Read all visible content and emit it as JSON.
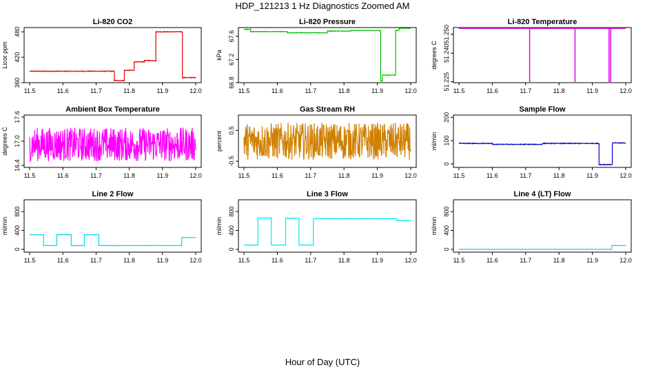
{
  "figure": {
    "title": "HDP_121213  1 Hz Diagnostics Zoomed AM",
    "xlabel": "Hour of Day (UTC)"
  },
  "chart_data": [
    {
      "type": "line",
      "title": "Li-820 CO2",
      "ylabel": "Licor ppm",
      "color": "#e00000",
      "xlim": [
        11.5,
        12.0
      ],
      "ylim": [
        360,
        490
      ],
      "xticks": [
        "11.5",
        "11.6",
        "11.7",
        "11.8",
        "11.9",
        "12.0"
      ],
      "yticks": [
        360,
        420,
        480
      ],
      "ytick_labels": [
        "360",
        "420",
        "480"
      ],
      "segments": [
        [
          11.5,
          11.755,
          387
        ],
        [
          11.755,
          11.785,
          365
        ],
        [
          11.785,
          11.815,
          389
        ],
        [
          11.815,
          11.845,
          409
        ],
        [
          11.845,
          11.88,
          412
        ],
        [
          11.88,
          11.96,
          480
        ],
        [
          11.96,
          12.0,
          372
        ]
      ],
      "noise": 0.8
    },
    {
      "type": "line",
      "title": "Li-820 Pressure",
      "ylabel": "kPa",
      "color": "#00c000",
      "xlim": [
        11.5,
        12.0
      ],
      "ylim": [
        66.8,
        67.75
      ],
      "xticks": [
        "11.5",
        "11.6",
        "11.7",
        "11.8",
        "11.9",
        "12.0"
      ],
      "yticks": [
        66.8,
        67.2,
        67.6
      ],
      "ytick_labels": [
        "66.8",
        "67.2",
        "67.6"
      ],
      "segments": [
        [
          11.5,
          11.52,
          67.72
        ],
        [
          11.52,
          11.63,
          67.68
        ],
        [
          11.63,
          11.75,
          67.66
        ],
        [
          11.75,
          11.82,
          67.69
        ],
        [
          11.82,
          11.91,
          67.7
        ],
        [
          11.91,
          11.915,
          66.83
        ],
        [
          11.915,
          11.955,
          66.93
        ],
        [
          11.955,
          11.965,
          67.7
        ],
        [
          11.965,
          12.0,
          67.74
        ]
      ],
      "noise": 0.005
    },
    {
      "type": "line",
      "title": "Li-820 Temperature",
      "ylabel": "degrees C",
      "color": "#e000e0",
      "xlim": [
        11.5,
        12.0
      ],
      "ylim": [
        51.2245,
        51.2535
      ],
      "xticks": [
        "11.5",
        "11.6",
        "11.7",
        "11.8",
        "11.9",
        "12.0"
      ],
      "yticks": [
        51.225,
        51.24,
        51.25
      ],
      "ytick_labels": [
        "51.225",
        "51.240",
        "51.250"
      ],
      "segments": [
        [
          11.5,
          12.0,
          51.253
        ]
      ],
      "spikes": [
        [
          11.712,
          51.2245
        ],
        [
          11.848,
          51.2245
        ],
        [
          11.95,
          51.2245
        ],
        [
          11.955,
          51.2245
        ]
      ],
      "noise": 0.0
    },
    {
      "type": "line",
      "title": "Ambient Box Temperature",
      "ylabel": "degrees C",
      "color": "#ff00ff",
      "xlim": [
        11.5,
        12.0
      ],
      "ylim": [
        16.35,
        17.65
      ],
      "xticks": [
        "11.5",
        "11.6",
        "11.7",
        "11.8",
        "11.9",
        "12.0"
      ],
      "yticks": [
        16.4,
        17.0,
        17.6
      ],
      "ytick_labels": [
        "16.4",
        "17.0",
        "17.6"
      ],
      "segments": [
        [
          11.5,
          12.0,
          16.92
        ]
      ],
      "noise": 0.42
    },
    {
      "type": "line",
      "title": "Gas Stream RH",
      "ylabel": "percent",
      "color": "#d08000",
      "xlim": [
        11.5,
        12.0
      ],
      "ylim": [
        -0.7,
        1.0
      ],
      "xticks": [
        "11.5",
        "11.6",
        "11.7",
        "11.8",
        "11.9",
        "12.0"
      ],
      "yticks": [
        -0.5,
        0.5
      ],
      "ytick_labels": [
        "-0.5",
        "0.5"
      ],
      "segments": [
        [
          11.5,
          12.0,
          0.15
        ]
      ],
      "noise": 0.6
    },
    {
      "type": "line",
      "title": "Sample Flow",
      "ylabel": "ml/min",
      "color": "#0000c0",
      "xlim": [
        11.5,
        12.0
      ],
      "ylim": [
        -15,
        210
      ],
      "xticks": [
        "11.5",
        "11.6",
        "11.7",
        "11.8",
        "11.9",
        "12.0"
      ],
      "yticks": [
        0,
        100,
        200
      ],
      "ytick_labels": [
        "0",
        "100",
        "200"
      ],
      "segments": [
        [
          11.5,
          11.6,
          88
        ],
        [
          11.6,
          11.75,
          84
        ],
        [
          11.75,
          11.92,
          88
        ],
        [
          11.92,
          11.96,
          -3
        ],
        [
          11.96,
          12.0,
          90
        ]
      ],
      "noise": 1.5
    },
    {
      "type": "line",
      "title": "Line 2 Flow",
      "ylabel": "ml/min",
      "color": "#00d8e8",
      "xlim": [
        11.5,
        12.0
      ],
      "ylim": [
        -60,
        1050
      ],
      "xticks": [
        "11.5",
        "11.6",
        "11.7",
        "11.8",
        "11.9",
        "12.0"
      ],
      "yticks": [
        0,
        400,
        800
      ],
      "ytick_labels": [
        "0",
        "400",
        "800"
      ],
      "segments": [
        [
          11.5,
          11.542,
          310
        ],
        [
          11.542,
          11.582,
          80
        ],
        [
          11.582,
          11.625,
          310
        ],
        [
          11.625,
          11.665,
          80
        ],
        [
          11.665,
          11.708,
          310
        ],
        [
          11.708,
          11.958,
          80
        ],
        [
          11.958,
          12.0,
          250
        ]
      ],
      "noise": 4
    },
    {
      "type": "line",
      "title": "Line 3 Flow",
      "ylabel": "ml/min",
      "color": "#00e8f0",
      "xlim": [
        11.5,
        12.0
      ],
      "ylim": [
        -60,
        1050
      ],
      "xticks": [
        "11.5",
        "11.6",
        "11.7",
        "11.8",
        "11.9",
        "12.0"
      ],
      "yticks": [
        0,
        400,
        800
      ],
      "ytick_labels": [
        "0",
        "400",
        "800"
      ],
      "segments": [
        [
          11.5,
          11.542,
          90
        ],
        [
          11.542,
          11.582,
          660
        ],
        [
          11.582,
          11.625,
          90
        ],
        [
          11.625,
          11.665,
          660
        ],
        [
          11.665,
          11.708,
          90
        ],
        [
          11.708,
          11.958,
          650
        ],
        [
          11.958,
          12.0,
          610
        ]
      ],
      "noise": 5
    },
    {
      "type": "line",
      "title": "Line 4 (LT) Flow",
      "ylabel": "ml/min",
      "color": "#00d8e8",
      "xlim": [
        11.5,
        12.0
      ],
      "ylim": [
        -60,
        1050
      ],
      "xticks": [
        "11.5",
        "11.6",
        "11.7",
        "11.8",
        "11.9",
        "12.0"
      ],
      "yticks": [
        0,
        400,
        800
      ],
      "ytick_labels": [
        "0",
        "400",
        "800"
      ],
      "segments": [
        [
          11.5,
          11.958,
          0
        ],
        [
          11.958,
          12.0,
          80
        ]
      ],
      "noise": 1
    }
  ]
}
